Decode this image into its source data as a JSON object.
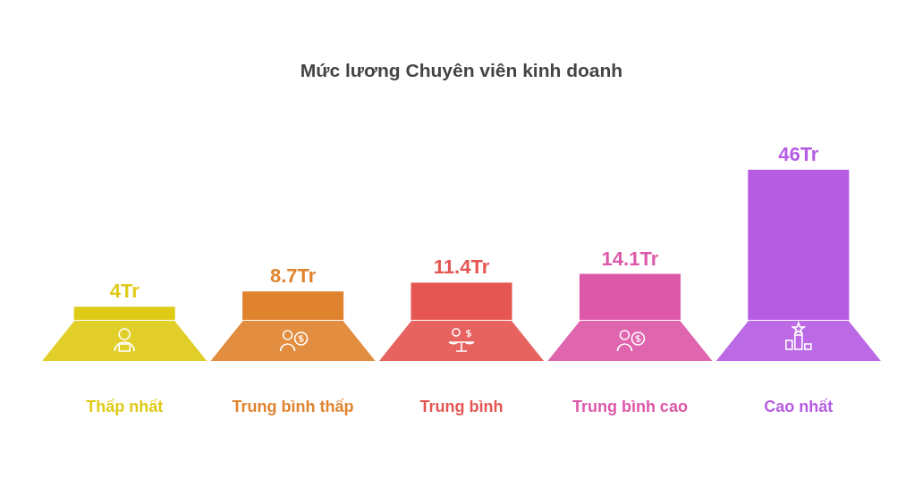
{
  "chart_data": {
    "type": "bar",
    "title": "Mức lương Chuyên viên kinh doanh",
    "categories": [
      "Thấp nhất",
      "Trung bình thấp",
      "Trung bình",
      "Trung bình cao",
      "Cao nhất"
    ],
    "values": [
      4,
      8.7,
      11.4,
      14.1,
      46
    ],
    "value_labels": [
      "4Tr",
      "8.7Tr",
      "11.4Tr",
      "14.1Tr",
      "46Tr"
    ],
    "colors": [
      "#dfca16",
      "#e0832f",
      "#e55653",
      "#dd58a8",
      "#b65ce3"
    ]
  }
}
